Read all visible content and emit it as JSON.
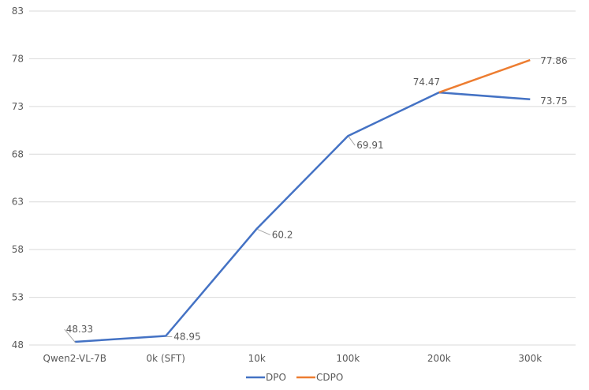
{
  "chart_data": {
    "type": "line",
    "title": "",
    "xlabel": "",
    "ylabel": "",
    "categories": [
      "Qwen2-VL-7B",
      "0k (SFT)",
      "10k",
      "100k",
      "200k",
      "300k"
    ],
    "ylim": [
      48,
      83
    ],
    "yticks": [
      48,
      53,
      58,
      63,
      68,
      73,
      78,
      83
    ],
    "grid": true,
    "legend_position": "bottom",
    "series": [
      {
        "name": "DPO",
        "color": "#4472C4",
        "values": [
          48.33,
          48.95,
          60.2,
          69.91,
          74.47,
          73.75
        ],
        "labels": [
          "48.33",
          "48.95",
          "60.2",
          "69.91",
          "74.47",
          "73.75"
        ]
      },
      {
        "name": "CDPO",
        "color": "#ED7D31",
        "values": [
          null,
          null,
          null,
          null,
          74.47,
          77.86
        ],
        "labels": [
          null,
          null,
          null,
          null,
          null,
          "77.86"
        ]
      }
    ]
  }
}
